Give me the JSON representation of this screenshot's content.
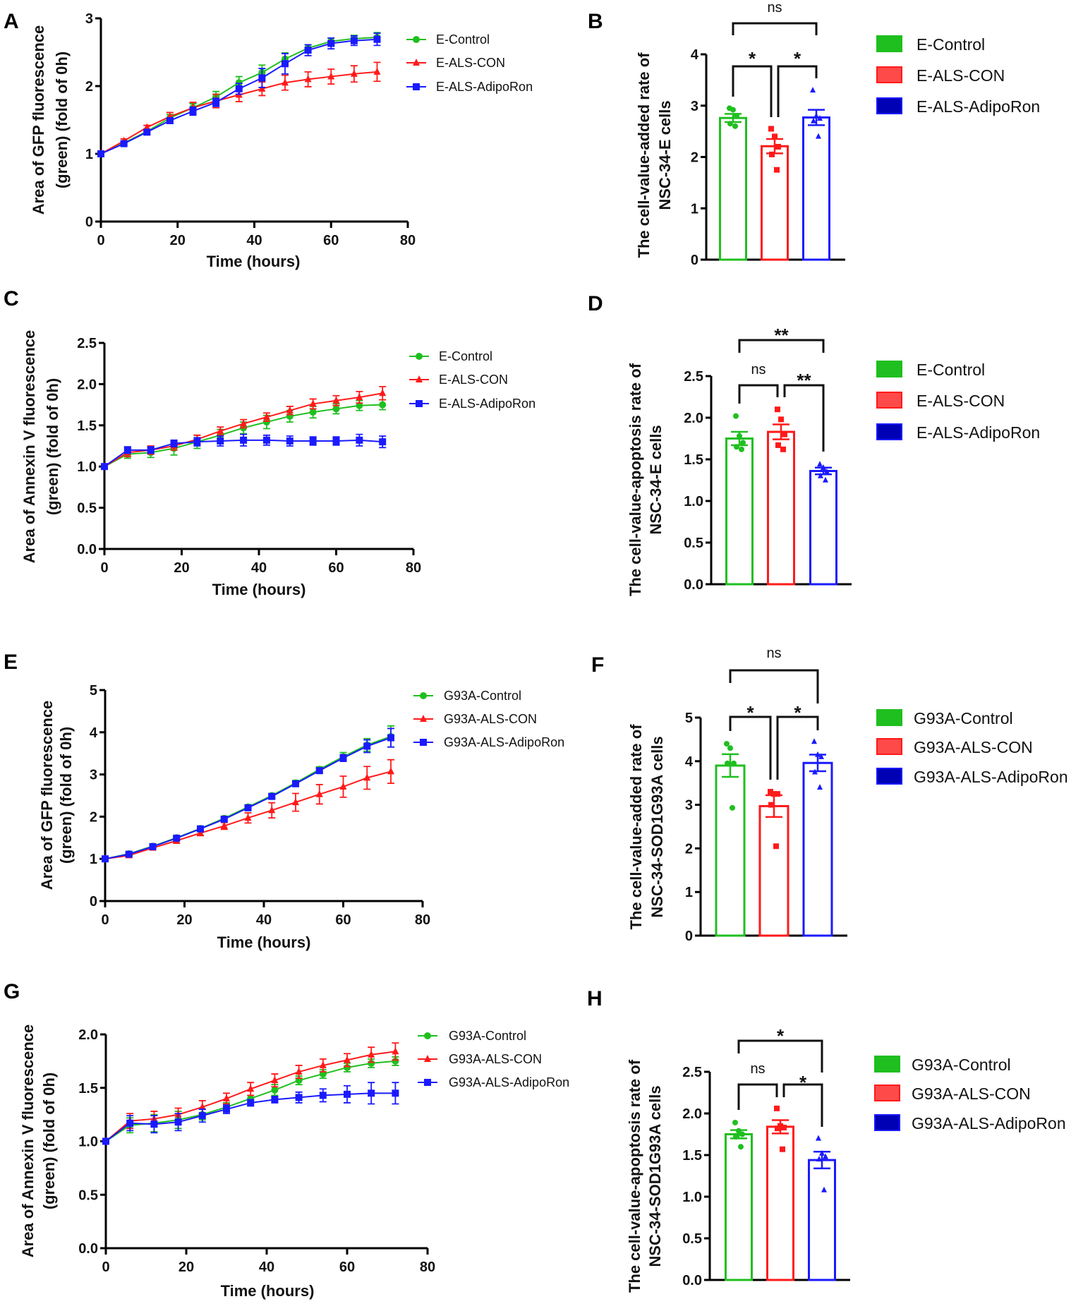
{
  "colors": {
    "control": "#1fbf1f",
    "als_con": "#ff1a1a",
    "adiporon": "#1a1aff",
    "con_fill": "#ff4a4a",
    "adipo_fill": "#0000b4",
    "axis": "#000000"
  },
  "chart_data": [
    {
      "panel": "A",
      "type": "line",
      "xlabel": "Time (hours)",
      "ylabel": [
        "Area of GFP fluorescence",
        "(green) (fold of 0h)"
      ],
      "xlim": [
        0,
        80
      ],
      "ylim": [
        0,
        3
      ],
      "xticks": [
        "0",
        "20",
        "40",
        "60",
        "80"
      ],
      "yticks": [
        "0",
        "1",
        "2",
        "3"
      ],
      "x": [
        0,
        6,
        12,
        18,
        24,
        30,
        36,
        42,
        48,
        54,
        60,
        66,
        72
      ],
      "legend_position": "right",
      "series": [
        {
          "name": "E-Control",
          "marker": "circle",
          "values": [
            1,
            1.16,
            1.33,
            1.53,
            1.68,
            1.84,
            2.05,
            2.2,
            2.4,
            2.56,
            2.66,
            2.7,
            2.72
          ],
          "sem": [
            0.02,
            0.03,
            0.03,
            0.05,
            0.06,
            0.08,
            0.09,
            0.11,
            0.09,
            0.05,
            0.05,
            0.05,
            0.07
          ]
        },
        {
          "name": "E-ALS-CON",
          "marker": "triangle",
          "values": [
            1,
            1.19,
            1.39,
            1.55,
            1.68,
            1.78,
            1.87,
            1.96,
            2.05,
            2.1,
            2.14,
            2.18,
            2.21
          ],
          "sem": [
            0.02,
            0.03,
            0.03,
            0.06,
            0.08,
            0.1,
            0.1,
            0.1,
            0.11,
            0.11,
            0.11,
            0.12,
            0.14
          ]
        },
        {
          "name": "E-ALS-AdipoRon",
          "marker": "square",
          "values": [
            1,
            1.15,
            1.32,
            1.49,
            1.63,
            1.76,
            1.96,
            2.12,
            2.33,
            2.53,
            2.63,
            2.67,
            2.69
          ],
          "sem": [
            0.02,
            0.03,
            0.03,
            0.04,
            0.06,
            0.06,
            0.08,
            0.14,
            0.15,
            0.08,
            0.08,
            0.07,
            0.09
          ]
        }
      ]
    },
    {
      "panel": "B",
      "type": "bar",
      "ylabel": [
        "The cell-value-added rate of",
        "NSC-34-E cells"
      ],
      "ylim": [
        0,
        4
      ],
      "yticks": [
        "0",
        "1",
        "2",
        "3",
        "4"
      ],
      "legend_position": "right",
      "series": [
        {
          "name": "E-Control",
          "value": 2.76,
          "sem": 0.08,
          "marker": "circle",
          "points": [
            2.95,
            2.92,
            2.8,
            2.65,
            2.6
          ]
        },
        {
          "name": "E-ALS-CON",
          "value": 2.21,
          "sem": 0.14,
          "marker": "square",
          "points": [
            2.55,
            2.4,
            2.2,
            2.05,
            1.75
          ]
        },
        {
          "name": "E-ALS-AdipoRon",
          "value": 2.77,
          "sem": 0.15,
          "marker": "triangle",
          "points": [
            3.3,
            2.8,
            2.75,
            2.7,
            2.4
          ]
        }
      ],
      "comparisons": [
        {
          "groups": [
            "E-Control",
            "E-ALS-AdipoRon"
          ],
          "label": "ns"
        },
        {
          "groups": [
            "E-Control",
            "E-ALS-CON"
          ],
          "label": "*"
        },
        {
          "groups": [
            "E-ALS-CON",
            "E-ALS-AdipoRon"
          ],
          "label": "*"
        }
      ]
    },
    {
      "panel": "C",
      "type": "line",
      "xlabel": "Time (hours)",
      "ylabel": [
        "Area of Annexin V fluorescence",
        "(green) (fold of 0h)"
      ],
      "xlim": [
        0,
        80
      ],
      "ylim": [
        0,
        2.5
      ],
      "xticks": [
        "0",
        "20",
        "40",
        "60",
        "80"
      ],
      "yticks": [
        "0.0",
        "0.5",
        "1.0",
        "1.5",
        "2.0",
        "2.5"
      ],
      "x": [
        0,
        6,
        12,
        18,
        24,
        30,
        36,
        42,
        48,
        54,
        60,
        66,
        72
      ],
      "legend_position": "right",
      "series": [
        {
          "name": "E-Control",
          "marker": "circle",
          "values": [
            1,
            1.15,
            1.17,
            1.22,
            1.3,
            1.38,
            1.47,
            1.54,
            1.61,
            1.66,
            1.7,
            1.74,
            1.75
          ],
          "sem": [
            0.02,
            0.05,
            0.06,
            0.08,
            0.08,
            0.07,
            0.07,
            0.08,
            0.07,
            0.07,
            0.06,
            0.06,
            0.06
          ]
        },
        {
          "name": "E-ALS-CON",
          "marker": "triangle",
          "values": [
            1,
            1.17,
            1.2,
            1.25,
            1.33,
            1.43,
            1.52,
            1.6,
            1.68,
            1.76,
            1.8,
            1.84,
            1.89
          ],
          "sem": [
            0.02,
            0.05,
            0.05,
            0.05,
            0.05,
            0.05,
            0.05,
            0.05,
            0.05,
            0.06,
            0.06,
            0.07,
            0.08
          ]
        },
        {
          "name": "E-ALS-AdipoRon",
          "marker": "square",
          "values": [
            1,
            1.2,
            1.2,
            1.28,
            1.3,
            1.31,
            1.32,
            1.32,
            1.31,
            1.31,
            1.31,
            1.32,
            1.3
          ],
          "sem": [
            0.02,
            0.04,
            0.04,
            0.04,
            0.05,
            0.06,
            0.07,
            0.06,
            0.06,
            0.05,
            0.05,
            0.07,
            0.07
          ]
        }
      ]
    },
    {
      "panel": "D",
      "type": "bar",
      "ylabel": [
        "The cell-value-apoptosis rate of",
        "NSC-34-E cells"
      ],
      "ylim": [
        0,
        2.5
      ],
      "yticks": [
        "0.0",
        "0.5",
        "1.0",
        "1.5",
        "2.0",
        "2.5"
      ],
      "legend_position": "right",
      "series": [
        {
          "name": "E-Control",
          "value": 1.75,
          "sem": 0.08,
          "marker": "circle",
          "points": [
            2.02,
            1.78,
            1.7,
            1.65,
            1.62
          ]
        },
        {
          "name": "E-ALS-CON",
          "value": 1.83,
          "sem": 0.09,
          "marker": "square",
          "points": [
            2.1,
            1.98,
            1.8,
            1.67,
            1.62
          ]
        },
        {
          "name": "E-ALS-AdipoRon",
          "value": 1.36,
          "sem": 0.04,
          "marker": "triangle",
          "points": [
            1.44,
            1.4,
            1.35,
            1.3,
            1.25
          ]
        }
      ],
      "comparisons": [
        {
          "groups": [
            "E-Control",
            "E-ALS-AdipoRon"
          ],
          "label": "**"
        },
        {
          "groups": [
            "E-Control",
            "E-ALS-CON"
          ],
          "label": "ns"
        },
        {
          "groups": [
            "E-ALS-CON",
            "E-ALS-AdipoRon"
          ],
          "label": "**"
        }
      ]
    },
    {
      "panel": "E",
      "type": "line",
      "xlabel": "Time (hours)",
      "ylabel": [
        "Area of GFP fluorescence",
        "(green) (fold of 0h)"
      ],
      "xlim": [
        0,
        80
      ],
      "ylim": [
        0,
        5
      ],
      "xticks": [
        "0",
        "20",
        "40",
        "60",
        "80"
      ],
      "yticks": [
        "0",
        "1",
        "2",
        "3",
        "4",
        "5"
      ],
      "x": [
        0,
        6,
        12,
        18,
        24,
        30,
        36,
        42,
        48,
        54,
        60,
        66,
        72
      ],
      "legend_position": "right",
      "series": [
        {
          "name": "G93A-Control",
          "marker": "circle",
          "values": [
            1,
            1.12,
            1.3,
            1.5,
            1.72,
            1.96,
            2.23,
            2.5,
            2.8,
            3.12,
            3.42,
            3.7,
            3.9
          ],
          "sem": [
            0.02,
            0.03,
            0.03,
            0.04,
            0.04,
            0.05,
            0.05,
            0.05,
            0.06,
            0.06,
            0.1,
            0.15,
            0.25
          ]
        },
        {
          "name": "G93A-ALS-CON",
          "marker": "triangle",
          "values": [
            1,
            1.08,
            1.26,
            1.43,
            1.61,
            1.78,
            1.97,
            2.15,
            2.34,
            2.53,
            2.71,
            2.92,
            3.07
          ],
          "sem": [
            0.02,
            0.04,
            0.05,
            0.06,
            0.06,
            0.08,
            0.12,
            0.18,
            0.21,
            0.23,
            0.25,
            0.27,
            0.28
          ]
        },
        {
          "name": "G93A-ALS-AdipoRon",
          "marker": "square",
          "values": [
            1,
            1.11,
            1.29,
            1.49,
            1.71,
            1.94,
            2.21,
            2.48,
            2.78,
            3.09,
            3.39,
            3.67,
            3.87
          ],
          "sem": [
            0.02,
            0.03,
            0.03,
            0.03,
            0.04,
            0.04,
            0.05,
            0.05,
            0.05,
            0.06,
            0.08,
            0.15,
            0.22
          ]
        }
      ]
    },
    {
      "panel": "F",
      "type": "bar",
      "ylabel": [
        "The cell-value-added rate of",
        "NSC-34-SOD1G93A cells"
      ],
      "ylim": [
        0,
        5
      ],
      "yticks": [
        "0",
        "1",
        "2",
        "3",
        "4",
        "5"
      ],
      "legend_position": "right",
      "series": [
        {
          "name": "G93A-Control",
          "value": 3.9,
          "sem": 0.26,
          "marker": "circle",
          "points": [
            4.4,
            4.3,
            3.95,
            3.95,
            2.93
          ]
        },
        {
          "name": "G93A-ALS-CON",
          "value": 2.97,
          "sem": 0.25,
          "marker": "square",
          "points": [
            3.3,
            3.25,
            3.25,
            3.0,
            2.05
          ]
        },
        {
          "name": "G93A-ALS-AdipoRon",
          "value": 3.96,
          "sem": 0.19,
          "marker": "triangle",
          "points": [
            4.45,
            4.15,
            4.1,
            3.75,
            3.4
          ]
        }
      ],
      "comparisons": [
        {
          "groups": [
            "G93A-Control",
            "G93A-ALS-AdipoRon"
          ],
          "label": "ns"
        },
        {
          "groups": [
            "G93A-Control",
            "G93A-ALS-CON"
          ],
          "label": "*"
        },
        {
          "groups": [
            "G93A-ALS-CON",
            "G93A-ALS-AdipoRon"
          ],
          "label": "*"
        }
      ]
    },
    {
      "panel": "G",
      "type": "line",
      "xlabel": "Time (hours)",
      "ylabel": [
        "Area of Annexin V fluorescence",
        "(green) (fold of 0h)"
      ],
      "xlim": [
        0,
        80
      ],
      "ylim": [
        0,
        2
      ],
      "xticks": [
        "0",
        "20",
        "40",
        "60",
        "80"
      ],
      "yticks": [
        "0.0",
        "0.5",
        "1.0",
        "1.5",
        "2.0"
      ],
      "x": [
        0,
        6,
        12,
        18,
        24,
        30,
        36,
        42,
        48,
        54,
        60,
        66,
        72
      ],
      "legend_position": "right",
      "series": [
        {
          "name": "G93A-Control",
          "marker": "circle",
          "values": [
            1,
            1.15,
            1.17,
            1.2,
            1.25,
            1.32,
            1.4,
            1.48,
            1.57,
            1.63,
            1.69,
            1.73,
            1.75
          ],
          "sem": [
            0.01,
            0.07,
            0.08,
            0.08,
            0.05,
            0.04,
            0.03,
            0.05,
            0.04,
            0.04,
            0.04,
            0.04,
            0.04
          ]
        },
        {
          "name": "G93A-ALS-CON",
          "marker": "triangle",
          "values": [
            1,
            1.19,
            1.21,
            1.25,
            1.32,
            1.4,
            1.49,
            1.57,
            1.65,
            1.71,
            1.76,
            1.81,
            1.84
          ],
          "sem": [
            0.01,
            0.07,
            0.07,
            0.06,
            0.06,
            0.05,
            0.06,
            0.06,
            0.06,
            0.06,
            0.06,
            0.07,
            0.08
          ]
        },
        {
          "name": "G93A-ALS-AdipoRon",
          "marker": "square",
          "values": [
            1,
            1.17,
            1.16,
            1.18,
            1.24,
            1.3,
            1.36,
            1.39,
            1.41,
            1.43,
            1.44,
            1.45,
            1.45
          ],
          "sem": [
            0.01,
            0.07,
            0.08,
            0.08,
            0.06,
            0.04,
            0.03,
            0.03,
            0.05,
            0.06,
            0.08,
            0.1,
            0.1
          ]
        }
      ]
    },
    {
      "panel": "H",
      "type": "bar",
      "ylabel": [
        "The cell-value-apoptosis rate of",
        "NSC-34-SOD1G93A cells"
      ],
      "ylim": [
        0,
        2.5
      ],
      "yticks": [
        "0.0",
        "0.5",
        "1.0",
        "1.5",
        "2.0",
        "2.5"
      ],
      "legend_position": "right",
      "series": [
        {
          "name": "G93A-Control",
          "value": 1.75,
          "sem": 0.05,
          "marker": "circle",
          "points": [
            1.89,
            1.79,
            1.75,
            1.72,
            1.6
          ]
        },
        {
          "name": "G93A-ALS-CON",
          "value": 1.84,
          "sem": 0.08,
          "marker": "square",
          "points": [
            2.06,
            1.85,
            1.83,
            1.82,
            1.57
          ]
        },
        {
          "name": "G93A-ALS-AdipoRon",
          "value": 1.44,
          "sem": 0.1,
          "marker": "triangle",
          "points": [
            1.7,
            1.52,
            1.48,
            1.45,
            1.08
          ]
        }
      ],
      "comparisons": [
        {
          "groups": [
            "G93A-Control",
            "G93A-ALS-AdipoRon"
          ],
          "label": "*"
        },
        {
          "groups": [
            "G93A-Control",
            "G93A-ALS-CON"
          ],
          "label": "ns"
        },
        {
          "groups": [
            "G93A-ALS-CON",
            "G93A-ALS-AdipoRon"
          ],
          "label": "*"
        }
      ]
    }
  ]
}
